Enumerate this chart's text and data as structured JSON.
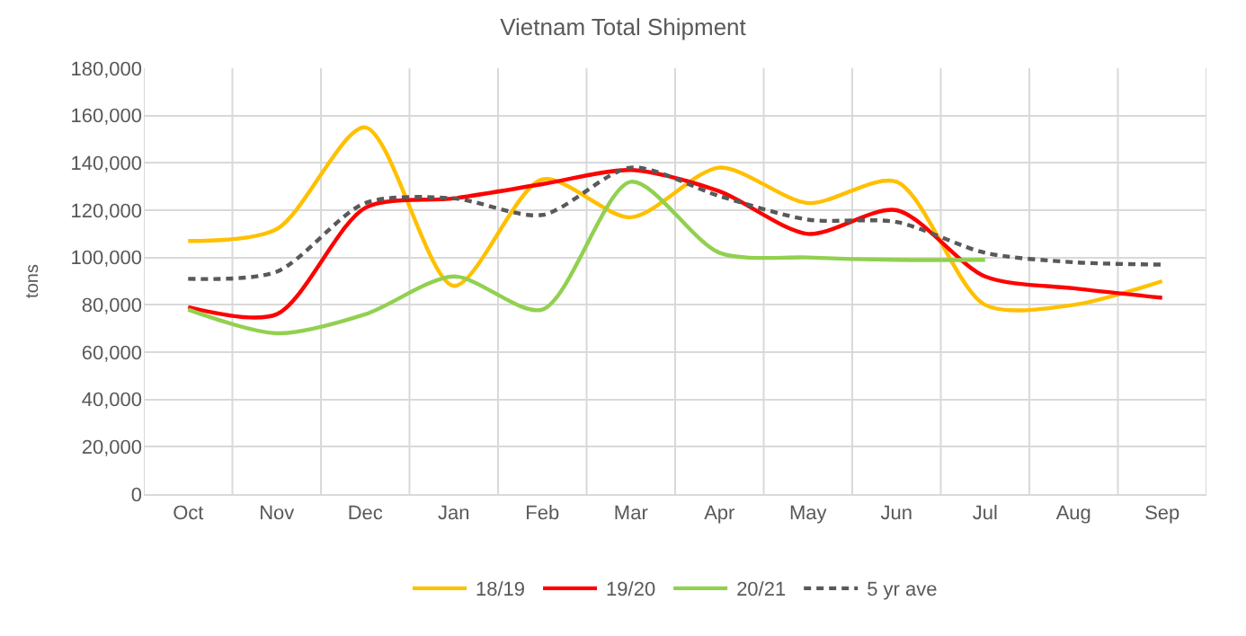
{
  "chart_data": {
    "type": "line",
    "title": "Vietnam Total Shipment",
    "ylabel": "tons",
    "categories": [
      "Oct",
      "Nov",
      "Dec",
      "Jan",
      "Feb",
      "Mar",
      "Apr",
      "May",
      "Jun",
      "Jul",
      "Aug",
      "Sep"
    ],
    "series": [
      {
        "name": "18/19",
        "color": "#ffc000",
        "values": [
          107000,
          112000,
          155000,
          88000,
          133000,
          117000,
          138000,
          123000,
          132000,
          80000,
          80000,
          90000
        ]
      },
      {
        "name": "19/20",
        "color": "#ff0000",
        "values": [
          79000,
          76000,
          121000,
          125000,
          131000,
          137000,
          128000,
          110000,
          120000,
          92000,
          87000,
          83000
        ]
      },
      {
        "name": "20/21",
        "color": "#92d050",
        "values": [
          78000,
          68000,
          76000,
          92000,
          78000,
          132000,
          102000,
          100000,
          99000,
          99000,
          null,
          null
        ]
      },
      {
        "name": "5 yr ave",
        "color": "#595959",
        "line_style": "dashed",
        "values": [
          91000,
          94000,
          123000,
          125000,
          118000,
          138000,
          126000,
          116000,
          115000,
          102000,
          98000,
          97000
        ]
      }
    ],
    "ylim": [
      0,
      180000
    ],
    "yticks": [
      0,
      {
        "value": 20000,
        "label": "20,000"
      },
      {
        "value": 40000,
        "label": "40,000"
      },
      {
        "value": 60000,
        "label": "60,000"
      },
      {
        "value": 80000,
        "label": "80,000"
      },
      {
        "value": 100000,
        "label": "100,000"
      },
      {
        "value": 120000,
        "label": "120,000"
      },
      {
        "value": 140000,
        "label": "140,000"
      },
      {
        "value": 160000,
        "label": "160,000"
      },
      {
        "value": 180000,
        "label": "180,000"
      }
    ],
    "grid": true,
    "legend": "bottom",
    "marker": "none"
  }
}
